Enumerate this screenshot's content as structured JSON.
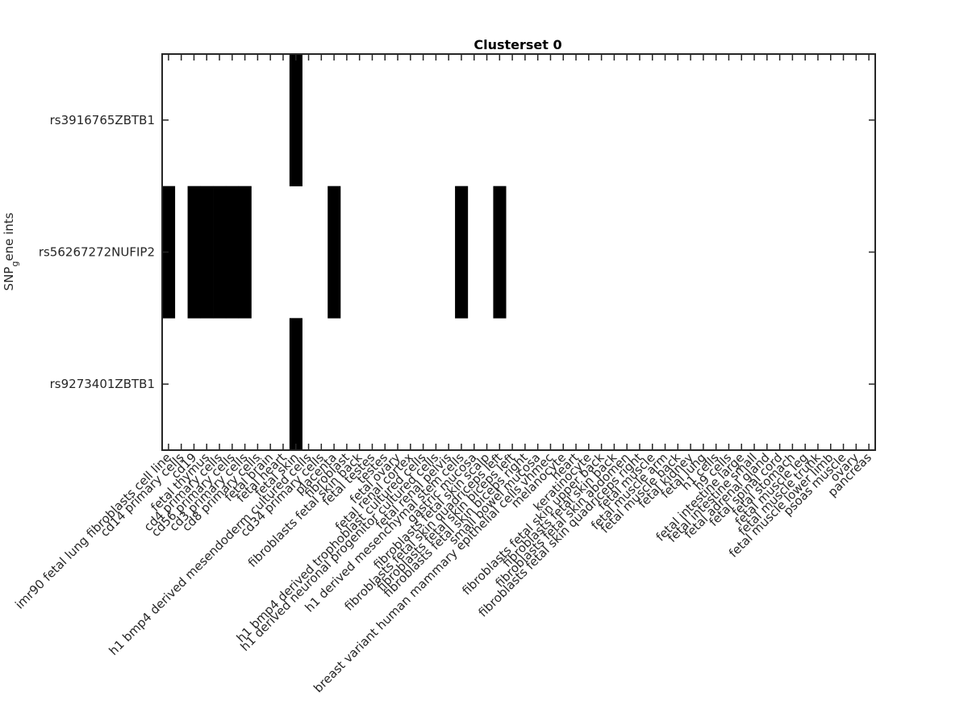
{
  "chart_data": {
    "type": "heatmap",
    "title": "Clusterset 0",
    "ylabel": "SNP",
    "ylabel_sub": "g",
    "ylabel_rest": "ene ints",
    "xlabel": "",
    "grid": false,
    "colors": {
      "on": "#000000",
      "off": "#ffffff",
      "frame": "#262626"
    },
    "rows": [
      "rs3916765ZBTB1",
      "rs56267272NUFIP2",
      "rs9273401ZBTB1"
    ],
    "columns": [
      "imr90 fetal lung fibroblasts cell line",
      "cd14 primary cells",
      "cd19",
      "fetal thymus",
      "cd4 primary cells",
      "cd56 primary cells",
      "cd3 primary cells",
      "cd8 primary cells",
      "fetal brain",
      "fetal heart",
      "fetal skin",
      "h1 bmp4 derived mesendoderm cultured cells",
      "cd34 primary cells",
      "placenta",
      "fibroblast",
      "fibroblasts fetal skin back",
      "fetal testes",
      "testes",
      "fetal ovary",
      "fetal renal cortex",
      "h1 bmp4 derived trophoblast cultured cells",
      "h1 derived neuronal progenitor cultured cells",
      "fetal renal pelvis",
      "h1 derived mesenchymal stem cells",
      "gastric mucosa",
      "fibroblasts fetal skin scalp",
      "fibroblasts fetal skin quadriceps left",
      "fibroblasts fetal skin biceps left",
      "fibroblasts fetal skin biceps right",
      "small bowel mucosa",
      "breast variant human mammary epithelial cells vhmec",
      "melanocyte",
      "heart",
      "keratinocyte",
      "fibroblasts fetal skin upper back",
      "fibroblasts fetal skin back",
      "fibroblasts fetal skin abdomen",
      "fibroblasts fetal skin quadriceps right",
      "fetal muscle",
      "fetal muscle arm",
      "fetal muscle back",
      "fetal kidney",
      "fetal lung",
      "h1 cells",
      "h9 cells",
      "fetal intestine large",
      "fetal intestine small",
      "fetal adrenal gland",
      "fetal spinal cord",
      "fetal stomach",
      "fetal muscle leg",
      "fetal muscle trunk",
      "fetal muscle lower limb",
      "psoas muscle",
      "ovary",
      "pancreas"
    ],
    "matrix": [
      [
        0,
        0,
        0,
        0,
        0,
        0,
        0,
        0,
        0,
        0,
        1,
        0,
        0,
        0,
        0,
        0,
        0,
        0,
        0,
        0,
        0,
        0,
        0,
        0,
        0,
        0,
        0,
        0,
        0,
        0,
        0,
        0,
        0,
        0,
        0,
        0,
        0,
        0,
        0,
        0,
        0,
        0,
        0,
        0,
        0,
        0,
        0,
        0,
        0,
        0,
        0,
        0,
        0,
        0,
        0,
        0
      ],
      [
        1,
        0,
        1,
        1,
        1,
        1,
        1,
        0,
        0,
        0,
        0,
        0,
        0,
        1,
        0,
        0,
        0,
        0,
        0,
        0,
        0,
        0,
        0,
        1,
        0,
        0,
        1,
        0,
        0,
        0,
        0,
        0,
        0,
        0,
        0,
        0,
        0,
        0,
        0,
        0,
        0,
        0,
        0,
        0,
        0,
        0,
        0,
        0,
        0,
        0,
        0,
        0,
        0,
        0,
        0,
        0
      ],
      [
        0,
        0,
        0,
        0,
        0,
        0,
        0,
        0,
        0,
        0,
        1,
        0,
        0,
        0,
        0,
        0,
        0,
        0,
        0,
        0,
        0,
        0,
        0,
        0,
        0,
        0,
        0,
        0,
        0,
        0,
        0,
        0,
        0,
        0,
        0,
        0,
        0,
        0,
        0,
        0,
        0,
        0,
        0,
        0,
        0,
        0,
        0,
        0,
        0,
        0,
        0,
        0,
        0,
        0,
        0,
        0
      ]
    ]
  }
}
